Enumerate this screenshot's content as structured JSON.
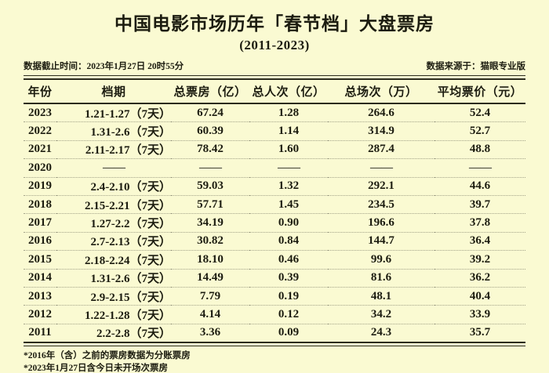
{
  "header": {
    "title": "中国电影市场历年「春节档」大盘票房",
    "subtitle": "(2011-2023)",
    "cutoff_label": "数据截止时间：2023年1月27日 20时55分",
    "source_label": "数据来源于：猫眼专业版"
  },
  "table": {
    "dash": "——",
    "columns": [
      "年份",
      "档期",
      "总票房（亿）",
      "总人次（亿）",
      "总场次（万）",
      "平均票价（元）"
    ],
    "rows": [
      [
        "2023",
        "1.21-1.27（7天）",
        "67.24",
        "1.28",
        "264.6",
        "52.4"
      ],
      [
        "2022",
        "1.31-2.6（7天）",
        "60.39",
        "1.14",
        "314.9",
        "52.7"
      ],
      [
        "2021",
        "2.11-2.17（7天）",
        "78.42",
        "1.60",
        "287.4",
        "48.8"
      ],
      [
        "2020",
        "——",
        "——",
        "——",
        "——",
        "——"
      ],
      [
        "2019",
        "2.4-2.10（7天）",
        "59.03",
        "1.32",
        "292.1",
        "44.6"
      ],
      [
        "2018",
        "2.15-2.21（7天）",
        "57.71",
        "1.45",
        "234.5",
        "39.7"
      ],
      [
        "2017",
        "1.27-2.2（7天）",
        "34.19",
        "0.90",
        "196.6",
        "37.8"
      ],
      [
        "2016",
        "2.7-2.13（7天）",
        "30.82",
        "0.84",
        "144.7",
        "36.4"
      ],
      [
        "2015",
        "2.18-2.24（7天）",
        "18.10",
        "0.46",
        "99.6",
        "39.2"
      ],
      [
        "2014",
        "1.31-2.6（7天）",
        "14.49",
        "0.39",
        "81.6",
        "36.2"
      ],
      [
        "2013",
        "2.9-2.15（7天）",
        "7.79",
        "0.19",
        "48.1",
        "40.4"
      ],
      [
        "2012",
        "1.22-1.28（7天）",
        "4.14",
        "0.12",
        "34.2",
        "33.9"
      ],
      [
        "2011",
        "2.2-2.8（7天）",
        "3.36",
        "0.09",
        "24.3",
        "35.7"
      ]
    ]
  },
  "footnotes": [
    "*2016年（含）之前的票房数据为分账票房",
    "*2023年1月27日含今日未开场次票房"
  ],
  "colors": {
    "background": "#FAFAD2",
    "text": "#1C1C10",
    "rule": "#2B2B1E",
    "row_divider": "#A3A389"
  },
  "chart_data": {
    "type": "table",
    "title": "中国电影市场历年「春节档」大盘票房 (2011-2023)",
    "data_cutoff": "2023年1月27日 20时55分",
    "source": "猫眼专业版",
    "columns": [
      "年份",
      "档期",
      "总票房（亿）",
      "总人次（亿）",
      "总场次（万）",
      "平均票价（元）"
    ],
    "rows": [
      {
        "year": 2023,
        "period": "1.21-1.27（7天）",
        "box_office_yi": 67.24,
        "admissions_yi": 1.28,
        "screenings_wan": 264.6,
        "avg_price_yuan": 52.4
      },
      {
        "year": 2022,
        "period": "1.31-2.6（7天）",
        "box_office_yi": 60.39,
        "admissions_yi": 1.14,
        "screenings_wan": 314.9,
        "avg_price_yuan": 52.7
      },
      {
        "year": 2021,
        "period": "2.11-2.17（7天）",
        "box_office_yi": 78.42,
        "admissions_yi": 1.6,
        "screenings_wan": 287.4,
        "avg_price_yuan": 48.8
      },
      {
        "year": 2020,
        "period": null,
        "box_office_yi": null,
        "admissions_yi": null,
        "screenings_wan": null,
        "avg_price_yuan": null
      },
      {
        "year": 2019,
        "period": "2.4-2.10（7天）",
        "box_office_yi": 59.03,
        "admissions_yi": 1.32,
        "screenings_wan": 292.1,
        "avg_price_yuan": 44.6
      },
      {
        "year": 2018,
        "period": "2.15-2.21（7天）",
        "box_office_yi": 57.71,
        "admissions_yi": 1.45,
        "screenings_wan": 234.5,
        "avg_price_yuan": 39.7
      },
      {
        "year": 2017,
        "period": "1.27-2.2（7天）",
        "box_office_yi": 34.19,
        "admissions_yi": 0.9,
        "screenings_wan": 196.6,
        "avg_price_yuan": 37.8
      },
      {
        "year": 2016,
        "period": "2.7-2.13（7天）",
        "box_office_yi": 30.82,
        "admissions_yi": 0.84,
        "screenings_wan": 144.7,
        "avg_price_yuan": 36.4
      },
      {
        "year": 2015,
        "period": "2.18-2.24（7天）",
        "box_office_yi": 18.1,
        "admissions_yi": 0.46,
        "screenings_wan": 99.6,
        "avg_price_yuan": 39.2
      },
      {
        "year": 2014,
        "period": "1.31-2.6（7天）",
        "box_office_yi": 14.49,
        "admissions_yi": 0.39,
        "screenings_wan": 81.6,
        "avg_price_yuan": 36.2
      },
      {
        "year": 2013,
        "period": "2.9-2.15（7天）",
        "box_office_yi": 7.79,
        "admissions_yi": 0.19,
        "screenings_wan": 48.1,
        "avg_price_yuan": 40.4
      },
      {
        "year": 2012,
        "period": "1.22-1.28（7天）",
        "box_office_yi": 4.14,
        "admissions_yi": 0.12,
        "screenings_wan": 34.2,
        "avg_price_yuan": 33.9
      },
      {
        "year": 2011,
        "period": "2.2-2.8（7天）",
        "box_office_yi": 3.36,
        "admissions_yi": 0.09,
        "screenings_wan": 24.3,
        "avg_price_yuan": 35.7
      }
    ],
    "notes": [
      "*2016年（含）之前的票房数据为分账票房",
      "*2023年1月27日含今日未开场次票房"
    ]
  }
}
